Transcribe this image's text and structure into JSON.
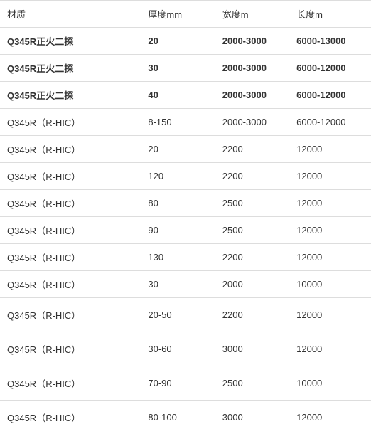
{
  "table": {
    "columns": [
      {
        "label": "材质",
        "class": "col-material"
      },
      {
        "label": "厚度mm",
        "class": "col-thickness"
      },
      {
        "label": "宽度m",
        "class": "col-width"
      },
      {
        "label": "长度m",
        "class": "col-length"
      }
    ],
    "rows": [
      {
        "material": "Q345R正火二探",
        "thickness": "20",
        "width": "2000-3000",
        "length": "6000-13000",
        "bold": true
      },
      {
        "material": "Q345R正火二探",
        "thickness": "30",
        "width": "2000-3000",
        "length": "6000-12000",
        "bold": true
      },
      {
        "material": "Q345R正火二探",
        "thickness": "40",
        "width": "2000-3000",
        "length": "6000-12000",
        "bold": true
      },
      {
        "material": "Q345R（R-HIC）",
        "thickness": "8-150",
        "width": "2000-3000",
        "length": "6000-12000"
      },
      {
        "material": "Q345R（R-HIC）",
        "thickness": "20",
        "width": "2200",
        "length": "12000"
      },
      {
        "material": "Q345R（R-HIC）",
        "thickness": "120",
        "width": "2200",
        "length": "12000"
      },
      {
        "material": "Q345R（R-HIC）",
        "thickness": "80",
        "width": "2500",
        "length": "12000"
      },
      {
        "material": "Q345R（R-HIC）",
        "thickness": "90",
        "width": "2500",
        "length": "12000"
      },
      {
        "material": "Q345R（R-HIC）",
        "thickness": "130",
        "width": "2200",
        "length": "12000"
      },
      {
        "material": "Q345R（R-HIC）",
        "thickness": "30",
        "width": "2000",
        "length": "10000"
      },
      {
        "material": "Q345R（R-HIC）",
        "thickness": "20-50",
        "width": "2200",
        "length": "12000",
        "tall": true
      },
      {
        "material": "Q345R（R-HIC）",
        "thickness": "30-60",
        "width": "3000",
        "length": "12000",
        "tall": true
      },
      {
        "material": "Q345R（R-HIC）",
        "thickness": "70-90",
        "width": "2500",
        "length": "10000",
        "tall": true
      },
      {
        "material": "Q345R（R-HIC）",
        "thickness": "80-100",
        "width": "3000",
        "length": "12000",
        "tall": true
      }
    ],
    "styling": {
      "border_color": "#dddddd",
      "text_color": "#333333",
      "background_color": "#ffffff",
      "font_size": 13,
      "cell_padding": "9px 10px",
      "tall_cell_padding": "14px 10px"
    }
  }
}
